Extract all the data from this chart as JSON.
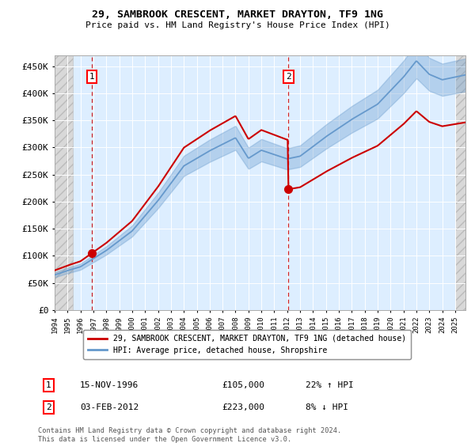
{
  "title1": "29, SAMBROOK CRESCENT, MARKET DRAYTON, TF9 1NG",
  "title2": "Price paid vs. HM Land Registry's House Price Index (HPI)",
  "ytick_values": [
    0,
    50000,
    100000,
    150000,
    200000,
    250000,
    300000,
    350000,
    400000,
    450000
  ],
  "ylim": [
    0,
    470000
  ],
  "xlim_start": 1994.0,
  "xlim_end": 2025.8,
  "xticks": [
    1994,
    1995,
    1996,
    1997,
    1998,
    1999,
    2000,
    2001,
    2002,
    2003,
    2004,
    2005,
    2006,
    2007,
    2008,
    2009,
    2010,
    2011,
    2012,
    2013,
    2014,
    2015,
    2016,
    2017,
    2018,
    2019,
    2020,
    2021,
    2022,
    2023,
    2024,
    2025
  ],
  "sale1_x": 1996.88,
  "sale1_y": 105000,
  "sale1_label": "1",
  "sale2_x": 2012.08,
  "sale2_y": 223000,
  "sale2_label": "2",
  "red_color": "#cc0000",
  "blue_color": "#6699cc",
  "bg_plot": "#ddeeff",
  "grid_color": "#ffffff",
  "legend_line1": "29, SAMBROOK CRESCENT, MARKET DRAYTON, TF9 1NG (detached house)",
  "legend_line2": "HPI: Average price, detached house, Shropshire",
  "ann1_date": "15-NOV-1996",
  "ann1_price": "£105,000",
  "ann1_hpi": "22% ↑ HPI",
  "ann2_date": "03-FEB-2012",
  "ann2_price": "£223,000",
  "ann2_hpi": "8% ↓ HPI",
  "footer": "Contains HM Land Registry data © Crown copyright and database right 2024.\nThis data is licensed under the Open Government Licence v3.0."
}
